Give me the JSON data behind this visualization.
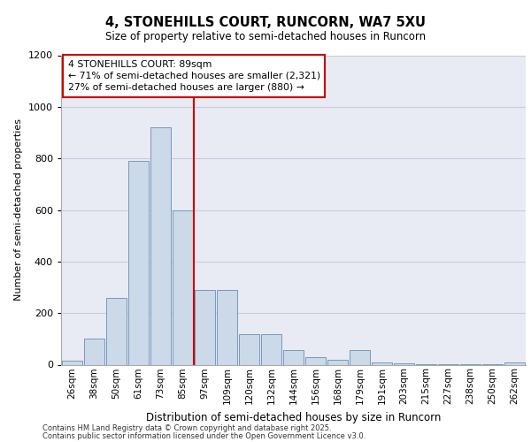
{
  "title_line1": "4, STONEHILLS COURT, RUNCORN, WA7 5XU",
  "title_line2": "Size of property relative to semi-detached houses in Runcorn",
  "xlabel": "Distribution of semi-detached houses by size in Runcorn",
  "ylabel": "Number of semi-detached properties",
  "categories": [
    "26sqm",
    "38sqm",
    "50sqm",
    "61sqm",
    "73sqm",
    "85sqm",
    "97sqm",
    "109sqm",
    "120sqm",
    "132sqm",
    "144sqm",
    "156sqm",
    "168sqm",
    "179sqm",
    "191sqm",
    "203sqm",
    "215sqm",
    "227sqm",
    "238sqm",
    "250sqm",
    "262sqm"
  ],
  "values": [
    15,
    100,
    260,
    790,
    920,
    600,
    290,
    290,
    120,
    120,
    55,
    30,
    20,
    55,
    10,
    5,
    3,
    2,
    2,
    2,
    10
  ],
  "bar_color": "#ccd9e8",
  "bar_edge_color": "#7799bb",
  "grid_color": "#c8cce0",
  "background_color": "#e8eaf4",
  "annotation_text": "4 STONEHILLS COURT: 89sqm\n← 71% of semi-detached houses are smaller (2,321)\n27% of semi-detached houses are larger (880) →",
  "annotation_box_facecolor": "#ffffff",
  "annotation_edge_color": "#cc0000",
  "red_line_color": "#cc0000",
  "footer_line1": "Contains HM Land Registry data © Crown copyright and database right 2025.",
  "footer_line2": "Contains public sector information licensed under the Open Government Licence v3.0.",
  "ylim": [
    0,
    1200
  ],
  "yticks": [
    0,
    200,
    400,
    600,
    800,
    1000,
    1200
  ]
}
